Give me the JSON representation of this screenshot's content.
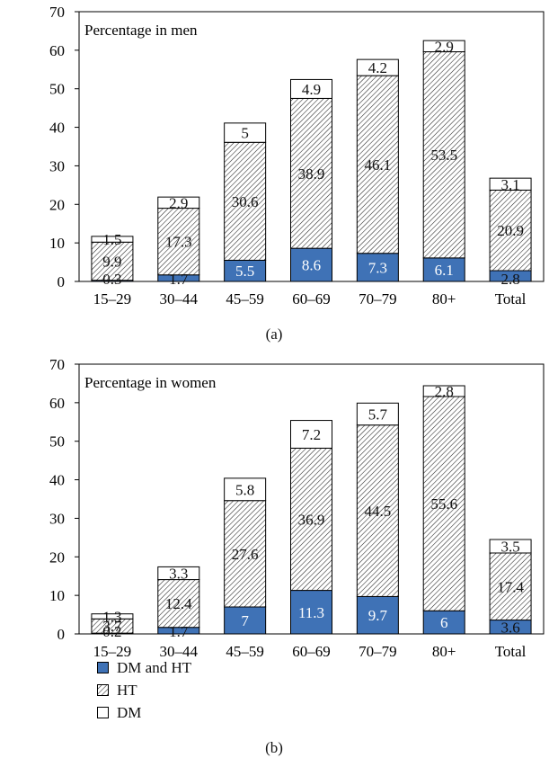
{
  "colors": {
    "dm_and_ht": "#3f72b6",
    "ht": "#ffffff",
    "dm": "#ffffff",
    "axis": "#000000"
  },
  "legend": {
    "items": [
      {
        "label": "DM and HT",
        "fill": "solid"
      },
      {
        "label": "HT",
        "fill": "hatch"
      },
      {
        "label": "DM",
        "fill": "empty"
      }
    ]
  },
  "captions": {
    "a": "(a)",
    "b": "(b)"
  },
  "chart_data": [
    {
      "type": "bar",
      "stacked": true,
      "panel_title": "Percentage in men",
      "categories": [
        "15–29",
        "30–44",
        "45–59",
        "60–69",
        "70–79",
        "80+",
        "Total"
      ],
      "ylim": [
        0,
        70
      ],
      "yticks": [
        0,
        10,
        20,
        30,
        40,
        50,
        60,
        70
      ],
      "series": [
        {
          "name": "DM and HT",
          "values": [
            0.3,
            1.7,
            5.5,
            8.6,
            7.3,
            6.1,
            2.8
          ],
          "labels": [
            "0.3",
            "1.7",
            "5.5",
            "8.6",
            "7.3",
            "6.1",
            "2.8"
          ]
        },
        {
          "name": "HT",
          "values": [
            9.9,
            17.3,
            30.6,
            38.9,
            46.1,
            53.5,
            20.9
          ],
          "labels": [
            "9.9",
            "17.3",
            "30.6",
            "38.9",
            "46.1",
            "53.5",
            "20.9"
          ]
        },
        {
          "name": "DM",
          "values": [
            1.5,
            2.9,
            5,
            4.9,
            4.2,
            2.9,
            3.1
          ],
          "labels": [
            "1.5",
            "2.9",
            "5",
            "4.9",
            "4.2",
            "2.9",
            "3.1"
          ]
        }
      ]
    },
    {
      "type": "bar",
      "stacked": true,
      "panel_title": "Percentage in women",
      "categories": [
        "15–29",
        "30–44",
        "45–59",
        "60–69",
        "70–79",
        "80+",
        "Total"
      ],
      "ylim": [
        0,
        70
      ],
      "yticks": [
        0,
        10,
        20,
        30,
        40,
        50,
        60,
        70
      ],
      "series": [
        {
          "name": "DM and HT",
          "values": [
            0.2,
            1.7,
            7,
            11.3,
            9.7,
            6,
            3.6
          ],
          "labels": [
            "0.2",
            "1.7",
            "7",
            "11.3",
            "9.7",
            "6",
            "3.6"
          ]
        },
        {
          "name": "HT",
          "values": [
            3.7,
            12.4,
            27.6,
            36.9,
            44.5,
            55.6,
            17.4
          ],
          "labels": [
            "3.7",
            "12.4",
            "27.6",
            "36.9",
            "44.5",
            "55.6",
            "17.4"
          ]
        },
        {
          "name": "DM",
          "values": [
            1.3,
            3.3,
            5.8,
            7.2,
            5.7,
            2.8,
            3.5
          ],
          "labels": [
            "1.3",
            "3.3",
            "5.8",
            "7.2",
            "5.7",
            "2.8",
            "3.5"
          ]
        }
      ]
    }
  ]
}
